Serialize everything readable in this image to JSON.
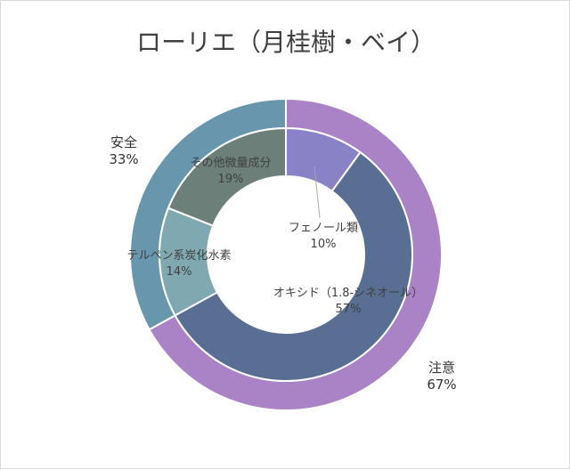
{
  "chart_data": {
    "type": "pie",
    "title": "ローリエ（月桂樹・ベイ）",
    "rings": [
      {
        "ring": "outer",
        "slices": [
          {
            "label": "注意",
            "value": 67,
            "pct_text": "67%",
            "color": "#a983c6"
          },
          {
            "label": "安全",
            "value": 33,
            "pct_text": "33%",
            "color": "#6897ad"
          }
        ]
      },
      {
        "ring": "inner",
        "slices": [
          {
            "label": "フェノール類",
            "value": 10,
            "pct_text": "10%",
            "color": "#8a82c7"
          },
          {
            "label": "オキシド（1.8-シネオール）",
            "value": 57,
            "pct_text": "57%",
            "color": "#596e93"
          },
          {
            "label": "テルペン系炭化水素",
            "value": 14,
            "pct_text": "14%",
            "color": "#7fa8b0"
          },
          {
            "label": "その他微量成分",
            "value": 19,
            "pct_text": "19%",
            "color": "#6c7f78"
          }
        ]
      }
    ]
  }
}
